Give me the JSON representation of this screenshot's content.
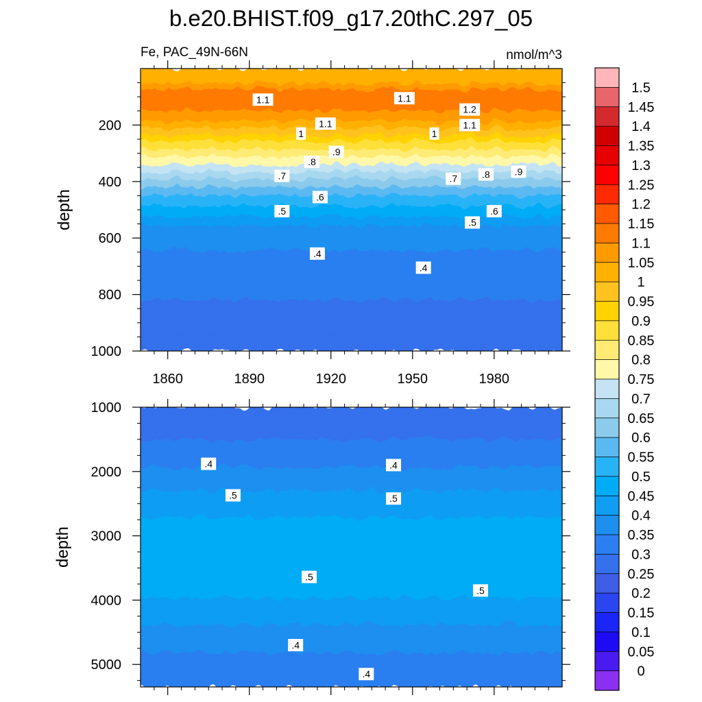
{
  "chart_data": {
    "type": "heatmap",
    "title": "b.e20.BHIST.f09_g17.20thC.297_05",
    "variable_label": "Fe, PAC_49N-66N",
    "units": "nmol/m^3",
    "ylabel": "depth",
    "x_ticks": [
      1860,
      1890,
      1920,
      1950,
      1980
    ],
    "xlim": [
      1850,
      2005
    ],
    "panels": [
      {
        "name": "upper",
        "ylim": [
          0,
          1000
        ],
        "y_ticks": [
          200,
          400,
          600,
          800,
          1000
        ],
        "profile": {
          "depth": [
            30,
            100,
            180,
            260,
            330,
            380,
            450,
            560,
            700,
            1000
          ],
          "value": [
            1.05,
            1.2,
            1.12,
            0.95,
            0.82,
            0.72,
            0.6,
            0.45,
            0.37,
            0.32
          ]
        },
        "contour_labels": [
          {
            "text": "1.1",
            "year": 1895,
            "depth": 110
          },
          {
            "text": "1.1",
            "year": 1947,
            "depth": 105
          },
          {
            "text": "1.2",
            "year": 1971,
            "depth": 145
          },
          {
            "text": "1.1",
            "year": 1918,
            "depth": 195
          },
          {
            "text": "1.1",
            "year": 1971,
            "depth": 200
          },
          {
            "text": "1",
            "year": 1909,
            "depth": 230
          },
          {
            "text": "1",
            "year": 1958,
            "depth": 230
          },
          {
            "text": ".9",
            "year": 1922,
            "depth": 295
          },
          {
            "text": ".9",
            "year": 1989,
            "depth": 365
          },
          {
            "text": ".8",
            "year": 1913,
            "depth": 330
          },
          {
            "text": ".8",
            "year": 1977,
            "depth": 375
          },
          {
            "text": ".7",
            "year": 1902,
            "depth": 380
          },
          {
            "text": ".7",
            "year": 1965,
            "depth": 390
          },
          {
            "text": ".6",
            "year": 1916,
            "depth": 455
          },
          {
            "text": ".6",
            "year": 1980,
            "depth": 505
          },
          {
            "text": ".5",
            "year": 1902,
            "depth": 505
          },
          {
            "text": ".5",
            "year": 1972,
            "depth": 545
          },
          {
            "text": ".4",
            "year": 1915,
            "depth": 655
          },
          {
            "text": ".4",
            "year": 1954,
            "depth": 705
          }
        ]
      },
      {
        "name": "lower",
        "ylim": [
          1000,
          5350
        ],
        "y_ticks": [
          1000,
          2000,
          3000,
          4000,
          5000
        ],
        "profile": {
          "depth": [
            1000,
            1400,
            1800,
            2300,
            2900,
            3400,
            3800,
            4300,
            5000,
            5350
          ],
          "value": [
            0.31,
            0.34,
            0.38,
            0.45,
            0.52,
            0.55,
            0.52,
            0.46,
            0.38,
            0.36
          ]
        },
        "contour_labels": [
          {
            "text": ".4",
            "year": 1875,
            "depth": 1880
          },
          {
            "text": ".4",
            "year": 1943,
            "depth": 1900
          },
          {
            "text": ".5",
            "year": 1884,
            "depth": 2370
          },
          {
            "text": ".5",
            "year": 1943,
            "depth": 2420
          },
          {
            "text": ".5",
            "year": 1912,
            "depth": 3640
          },
          {
            "text": ".5",
            "year": 1975,
            "depth": 3850
          },
          {
            "text": ".4",
            "year": 1907,
            "depth": 4700
          },
          {
            "text": ".4",
            "year": 1933,
            "depth": 5150
          }
        ]
      }
    ],
    "colorbar": {
      "labels": [
        "1.5",
        "1.45",
        "1.4",
        "1.35",
        "1.3",
        "1.25",
        "1.2",
        "1.15",
        "1.1",
        "1.05",
        "1",
        "0.95",
        "0.9",
        "0.85",
        "0.8",
        "0.75",
        "0.7",
        "0.65",
        "0.6",
        "0.55",
        "0.5",
        "0.45",
        "0.4",
        "0.35",
        "0.3",
        "0.25",
        "0.2",
        "0.15",
        "0.1",
        "0.05",
        "0"
      ],
      "colors": [
        "#ffb6ba",
        "#e8666b",
        "#d42a2e",
        "#d10000",
        "#e60000",
        "#ff0000",
        "#ff2a00",
        "#ff5a00",
        "#ff7a00",
        "#ff9a00",
        "#ffb000",
        "#ffc21f",
        "#ffd200",
        "#ffe03a",
        "#ffeb74",
        "#fff8a8",
        "#c4e3f3",
        "#a7d8ef",
        "#8ccbec",
        "#5bb9f1",
        "#29b3f7",
        "#00acf5",
        "#109df2",
        "#1d8fef",
        "#2c7ff0",
        "#3571ec",
        "#3f5ee6",
        "#2b45f0",
        "#1a25f6",
        "#1e0af4",
        "#4a1bf0",
        "#8b2ff0"
      ]
    }
  }
}
